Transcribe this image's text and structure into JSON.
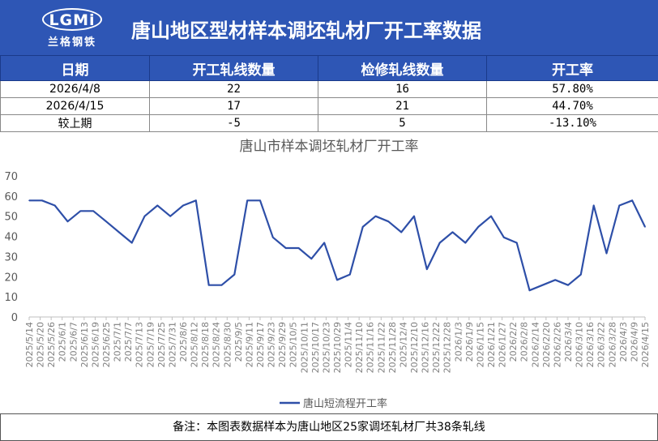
{
  "header": {
    "logo_text": "LGMi",
    "logo_sub": "兰格钢铁",
    "title": "唐山地区型材样本调坯轧材厂开工率数据"
  },
  "table": {
    "columns": [
      "日期",
      "开工轧线数量",
      "检修轧线数量",
      "开工率"
    ],
    "rows": [
      [
        "2026/4/8",
        "22",
        "16",
        "57.80%"
      ],
      [
        "2026/4/15",
        "17",
        "21",
        "44.70%"
      ],
      [
        "较上期",
        "-5",
        "5",
        "-13.10%"
      ]
    ]
  },
  "chart_data": {
    "type": "line",
    "title": "唐山市样本调坯轧材厂开工率",
    "ylim": [
      0,
      70
    ],
    "yticks": [
      0,
      10,
      20,
      30,
      40,
      50,
      60,
      70
    ],
    "categories": [
      "2025/5/14",
      "2025/5/20",
      "2025/5/26",
      "2025/6/1",
      "2025/6/7",
      "2025/6/13",
      "2025/6/19",
      "2025/6/25",
      "2025/7/1",
      "2025/7/7",
      "2025/7/13",
      "2025/7/19",
      "2025/7/25",
      "2025/7/31",
      "2025/8/6",
      "2025/8/12",
      "2025/8/18",
      "2025/8/24",
      "2025/8/30",
      "2025/9/5",
      "2025/9/11",
      "2025/9/17",
      "2025/9/23",
      "2025/9/29",
      "2025/10/5",
      "2025/10/11",
      "2025/10/17",
      "2025/10/23",
      "2025/10/29",
      "2025/11/4",
      "2025/11/10",
      "2025/11/16",
      "2025/11/22",
      "2025/11/28",
      "2025/12/4",
      "2025/12/10",
      "2025/12/16",
      "2025/12/22",
      "2025/12/28",
      "2026/1/3",
      "2026/1/9",
      "2026/1/15",
      "2026/1/21",
      "2026/1/27",
      "2026/2/2",
      "2026/2/8",
      "2026/2/14",
      "2026/2/20",
      "2026/2/26",
      "2026/3/4",
      "2026/3/10",
      "2026/3/16",
      "2026/3/22",
      "2026/3/28",
      "2026/4/3",
      "2026/4/9",
      "2026/4/15"
    ],
    "series": [
      {
        "name": "唐山短流程开工率",
        "color": "#2e4fa8",
        "x": [
          "2025/5/14",
          "2025/5/21",
          "2025/5/28",
          "2025/6/4",
          "2025/6/11",
          "2025/6/18",
          "2025/6/25",
          "2025/7/2",
          "2025/7/9",
          "2025/7/16",
          "2025/7/23",
          "2025/7/30",
          "2025/8/6",
          "2025/8/13",
          "2025/8/20",
          "2025/8/27",
          "2025/9/3",
          "2025/9/10",
          "2025/9/17",
          "2025/9/24",
          "2025/10/1",
          "2025/10/8",
          "2025/10/15",
          "2025/10/22",
          "2025/10/29",
          "2025/11/5",
          "2025/11/12",
          "2025/11/19",
          "2025/11/26",
          "2025/12/3",
          "2025/12/10",
          "2025/12/17",
          "2025/12/24",
          "2025/12/31",
          "2026/1/7",
          "2026/1/14",
          "2026/1/21",
          "2026/1/28",
          "2026/2/4",
          "2026/2/11",
          "2026/2/25",
          "2026/3/4",
          "2026/3/11",
          "2026/3/18",
          "2026/3/25",
          "2026/4/1",
          "2026/4/8",
          "2026/4/15"
        ],
        "values": [
          57.8,
          57.8,
          55.3,
          47.4,
          52.6,
          52.6,
          47.4,
          42.1,
          36.8,
          50.0,
          55.3,
          50.0,
          55.3,
          57.8,
          15.8,
          15.8,
          21.1,
          57.8,
          57.8,
          39.5,
          34.2,
          34.2,
          28.9,
          36.8,
          18.4,
          21.1,
          44.7,
          50.0,
          47.4,
          42.1,
          50.0,
          23.7,
          36.8,
          42.1,
          36.8,
          44.7,
          50.0,
          39.5,
          36.8,
          13.2,
          18.4,
          15.8,
          21.1,
          55.3,
          31.6,
          55.3,
          57.8,
          44.7
        ]
      }
    ]
  },
  "footer": {
    "note": "备注：本图表数据样本为唐山地区25家调坯轧材厂共38条轧线"
  }
}
